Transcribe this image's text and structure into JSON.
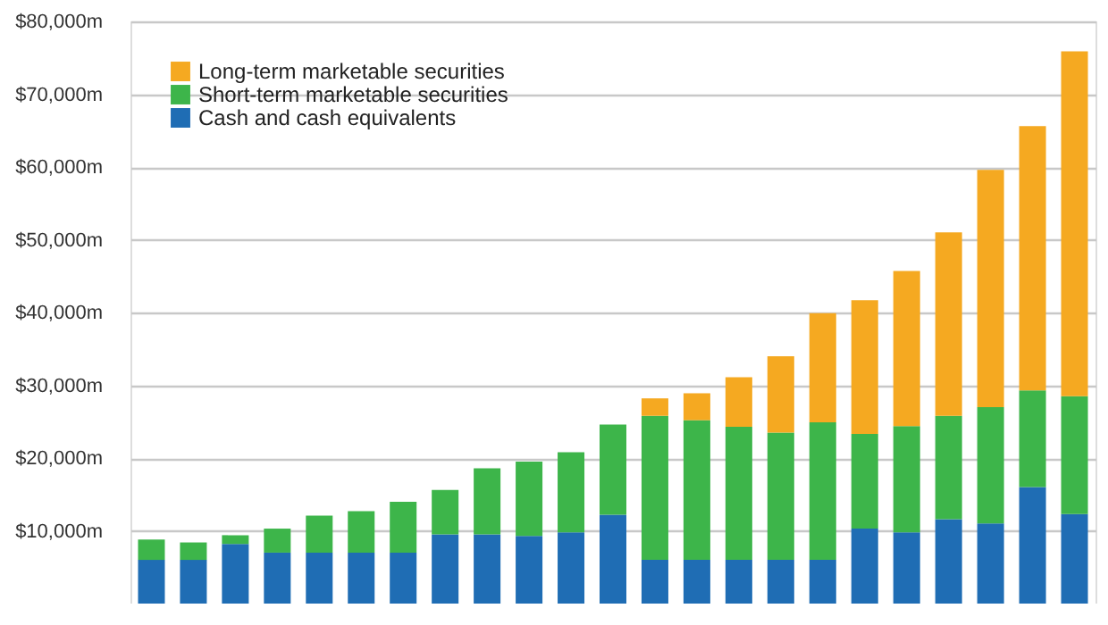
{
  "chart_data": {
    "type": "bar",
    "stacked": true,
    "categories": [
      null,
      null,
      null,
      null,
      null,
      null,
      null,
      null,
      null,
      null,
      null,
      null,
      null,
      null,
      null,
      null,
      null,
      null,
      null,
      null,
      null,
      null,
      null
    ],
    "series": [
      {
        "name": "Cash and cash equivalents",
        "color": "#1f6db4",
        "values": [
          6000,
          6000,
          8200,
          7000,
          7000,
          7000,
          7000,
          9500,
          9500,
          9300,
          9800,
          12200,
          6000,
          6000,
          6000,
          6000,
          6000,
          10300,
          9800,
          11600,
          11000,
          16000,
          12300
        ]
      },
      {
        "name": "Short-term marketable securities",
        "color": "#3db54a",
        "values": [
          2800,
          2400,
          1200,
          3300,
          5100,
          5700,
          7000,
          6100,
          9100,
          10200,
          11000,
          12400,
          19800,
          19200,
          18300,
          17500,
          18900,
          13000,
          14600,
          14200,
          16000,
          13300,
          16200
        ]
      },
      {
        "name": "Long-term marketable securities",
        "color": "#f5a921",
        "values": [
          null,
          null,
          null,
          null,
          null,
          null,
          null,
          null,
          null,
          null,
          null,
          null,
          2400,
          3700,
          6800,
          10500,
          15000,
          18400,
          21300,
          25200,
          32600,
          36300,
          47400
        ]
      }
    ],
    "ylim": [
      0,
      80000
    ],
    "yticks": [
      {
        "value": 10000,
        "label": "$10,000m"
      },
      {
        "value": 20000,
        "label": "$20,000m"
      },
      {
        "value": 30000,
        "label": "$30,000m"
      },
      {
        "value": 40000,
        "label": "$40,000m"
      },
      {
        "value": 50000,
        "label": "$50,000m"
      },
      {
        "value": 60000,
        "label": "$60,000m"
      },
      {
        "value": 70000,
        "label": "$70,000m"
      },
      {
        "value": 80000,
        "label": "$80,000m"
      }
    ],
    "tick_labels": "y",
    "grid": "y",
    "legend": "top left"
  }
}
